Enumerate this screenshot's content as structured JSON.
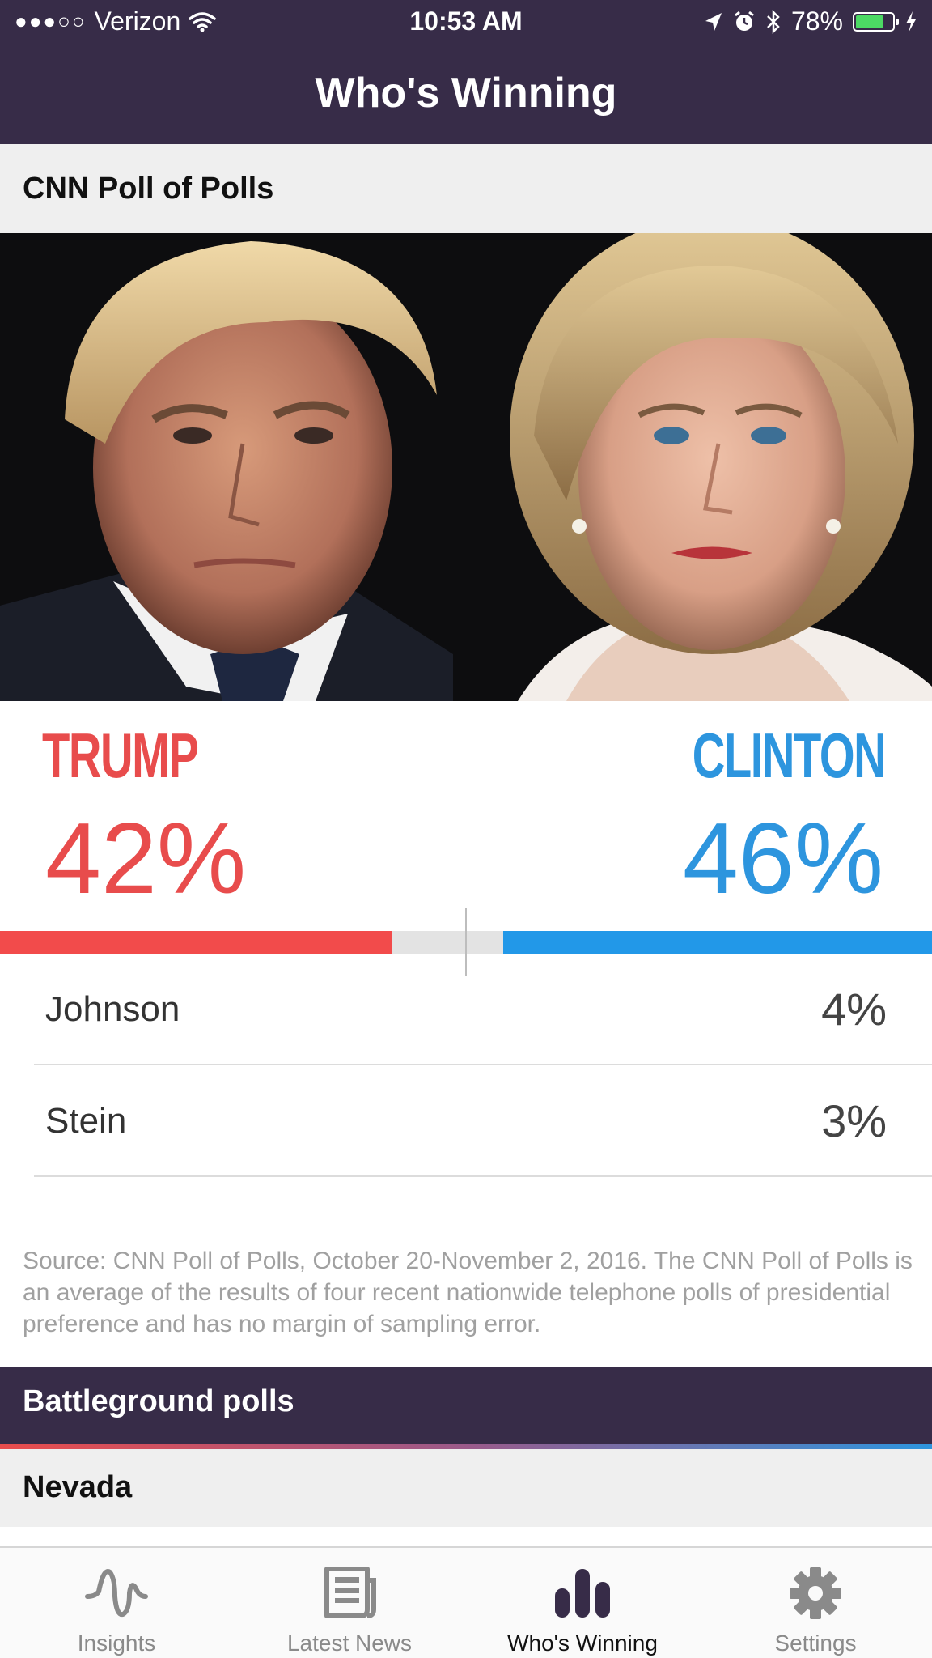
{
  "status_bar": {
    "carrier": "Verizon",
    "time": "10:53 AM",
    "battery_percent": "78%",
    "battery_level": 0.78
  },
  "nav": {
    "title": "Who's Winning"
  },
  "poll_section": {
    "title": "CNN Poll of Polls"
  },
  "candidates": {
    "trump": {
      "name": "TRUMP",
      "percent": "42%",
      "value": 42,
      "color": "#e84c4c"
    },
    "clinton": {
      "name": "CLINTON",
      "percent": "46%",
      "value": 46,
      "color": "#2d95de"
    }
  },
  "others": [
    {
      "name": "Johnson",
      "percent": "4%"
    },
    {
      "name": "Stein",
      "percent": "3%"
    }
  ],
  "source_note": "Source: CNN Poll of Polls, October 20-November 2, 2016. The CNN Poll of Polls is an average of the results of four recent nationwide telephone polls of presidential preference and has no margin of sampling error.",
  "battleground": {
    "title": "Battleground polls",
    "first_state": "Nevada"
  },
  "tabs": [
    {
      "label": "Insights",
      "icon": "waveform-icon"
    },
    {
      "label": "Latest News",
      "icon": "newspaper-icon"
    },
    {
      "label": "Who's Winning",
      "icon": "bar-chart-icon",
      "active": true
    },
    {
      "label": "Settings",
      "icon": "gear-icon"
    }
  ],
  "colors": {
    "header": "#372c48",
    "accent_red": "#f24b4b",
    "accent_blue": "#2298e8"
  }
}
